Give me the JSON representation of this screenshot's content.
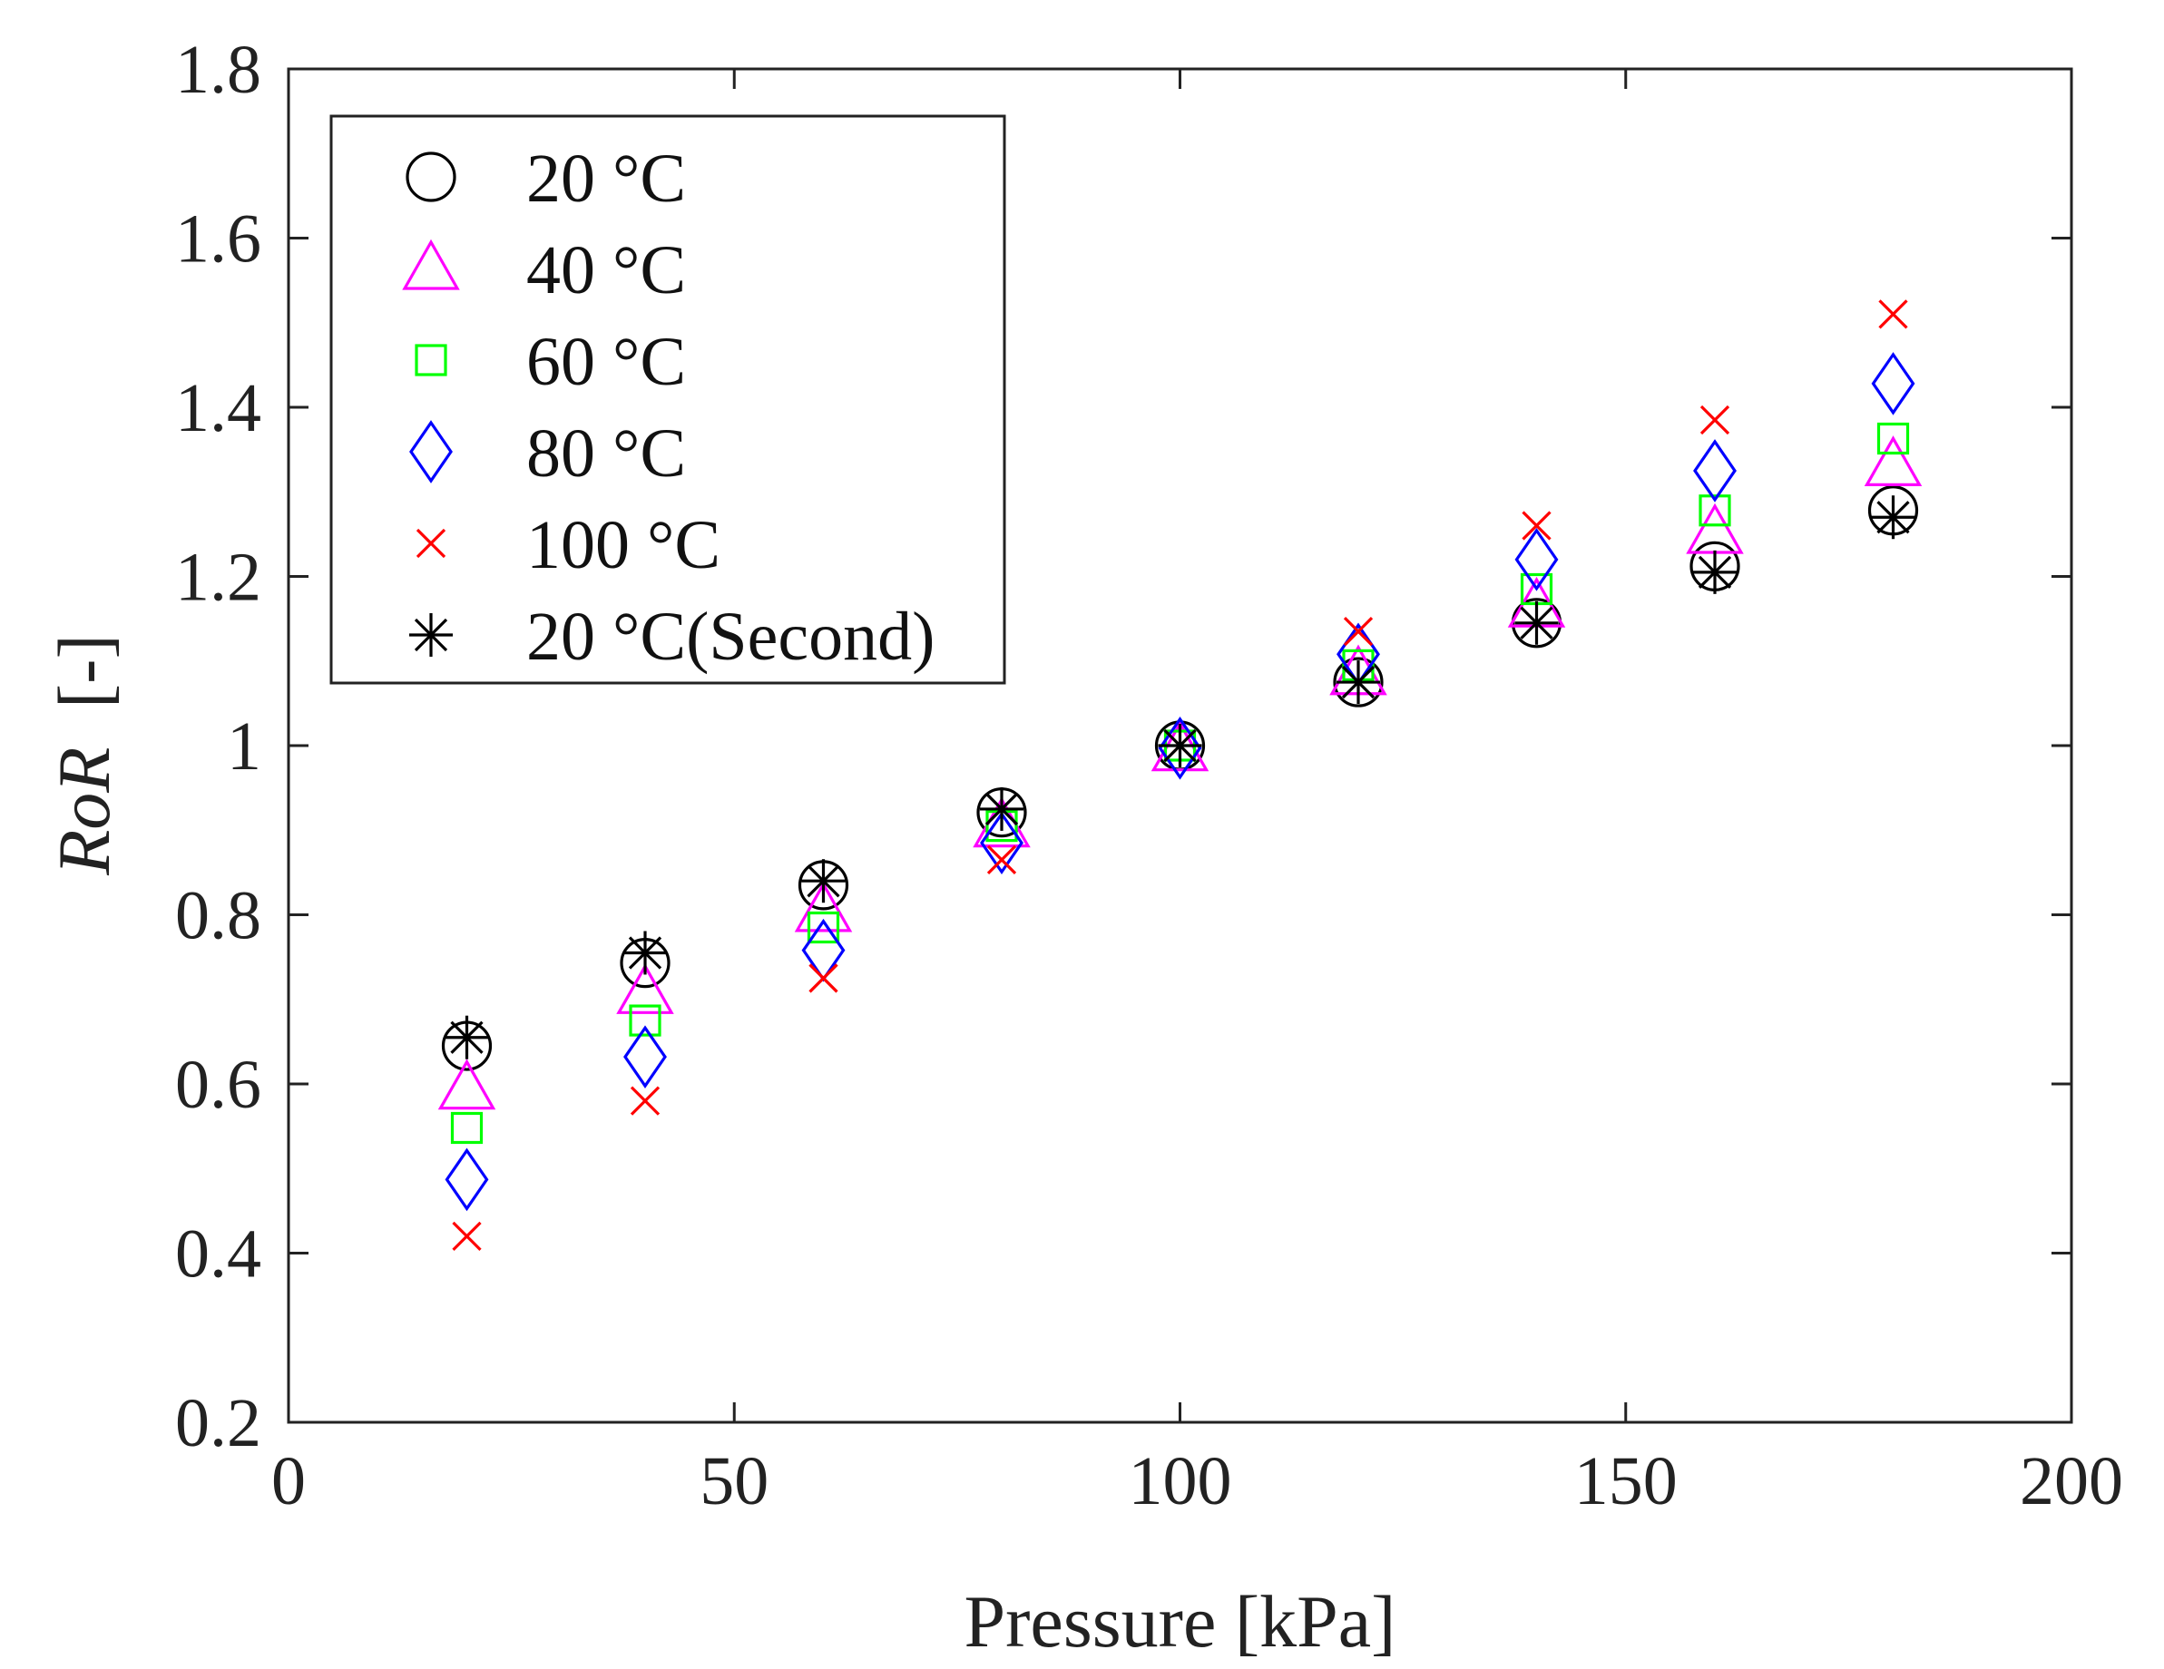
{
  "chart_data": {
    "type": "scatter",
    "title": "",
    "xlabel": "Pressure [kPa]",
    "ylabel_italic": "RoR",
    "ylabel_suffix": "[-]",
    "xlim": [
      0,
      200
    ],
    "ylim": [
      0.2,
      1.8
    ],
    "grid": false,
    "legend_position": "top-left",
    "x_ticks": [
      {
        "value": 0,
        "label": "0"
      },
      {
        "value": 50,
        "label": "50"
      },
      {
        "value": 100,
        "label": "100"
      },
      {
        "value": 150,
        "label": "150"
      },
      {
        "value": 200,
        "label": "200"
      }
    ],
    "y_ticks": [
      {
        "value": 0.2,
        "label": "0.2"
      },
      {
        "value": 0.4,
        "label": "0.4"
      },
      {
        "value": 0.6,
        "label": "0.6"
      },
      {
        "value": 0.8,
        "label": "0.8"
      },
      {
        "value": 1.0,
        "label": "1"
      },
      {
        "value": 1.2,
        "label": "1.2"
      },
      {
        "value": 1.4,
        "label": "1.4"
      },
      {
        "value": 1.6,
        "label": "1.6"
      },
      {
        "value": 1.8,
        "label": "1.8"
      }
    ],
    "x": [
      20,
      40,
      60,
      80,
      100,
      120,
      140,
      160,
      180
    ],
    "series": [
      {
        "name": "20 °C",
        "marker": "circle",
        "color": "#000000",
        "values": [
          0.645,
          0.743,
          0.835,
          0.921,
          1.0,
          1.075,
          1.145,
          1.212,
          1.278
        ]
      },
      {
        "name": "40 °C",
        "marker": "triangle",
        "color": "#ff00ff",
        "values": [
          0.595,
          0.708,
          0.805,
          0.905,
          0.995,
          1.085,
          1.165,
          1.252,
          1.332
        ]
      },
      {
        "name": "60 °C",
        "marker": "square",
        "color": "#00ff00",
        "values": [
          0.548,
          0.675,
          0.785,
          0.905,
          1.0,
          1.095,
          1.185,
          1.278,
          1.363
        ]
      },
      {
        "name": "80 °C",
        "marker": "diamond",
        "color": "#0000ff",
        "values": [
          0.487,
          0.632,
          0.758,
          0.885,
          0.997,
          1.108,
          1.22,
          1.325,
          1.428
        ]
      },
      {
        "name": "100 °C",
        "marker": "x",
        "color": "#ff0000",
        "values": [
          0.42,
          0.58,
          0.725,
          0.865,
          1.0,
          1.135,
          1.26,
          1.385,
          1.51
        ]
      },
      {
        "name": "20 °C(Second)",
        "marker": "asterisk",
        "color": "#000000",
        "values": [
          0.655,
          0.755,
          0.84,
          0.925,
          1.0,
          1.075,
          1.145,
          1.205,
          1.27
        ]
      }
    ]
  }
}
